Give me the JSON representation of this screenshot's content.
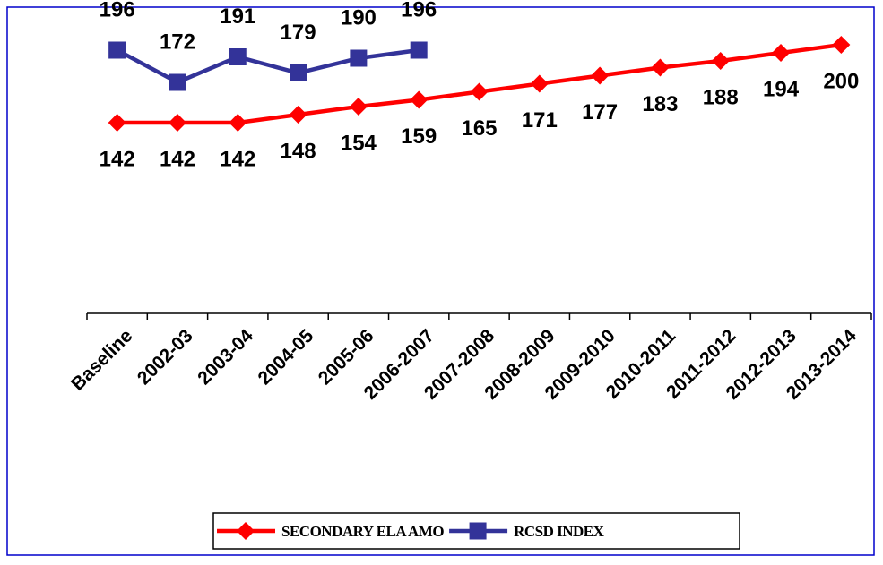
{
  "chart_data": {
    "type": "line",
    "categories": [
      "Baseline",
      "2002-03",
      "2003-04",
      "2004-05",
      "2005-06",
      "2006-2007",
      "2007-2008",
      "2008-2009",
      "2009-2010",
      "2010-2011",
      "2011-2012",
      "2012-2013",
      "2013-2014"
    ],
    "series": [
      {
        "name": "SECONDARY ELA AMO",
        "color": "#ff0000",
        "marker": "diamond",
        "values": [
          142,
          142,
          142,
          148,
          154,
          159,
          165,
          171,
          177,
          183,
          188,
          194,
          200
        ]
      },
      {
        "name": "RCSD INDEX",
        "color": "#333399",
        "marker": "square",
        "values": [
          196,
          172,
          191,
          179,
          190,
          196,
          null,
          null,
          null,
          null,
          null,
          null,
          null
        ]
      }
    ],
    "legend": "bottom"
  }
}
